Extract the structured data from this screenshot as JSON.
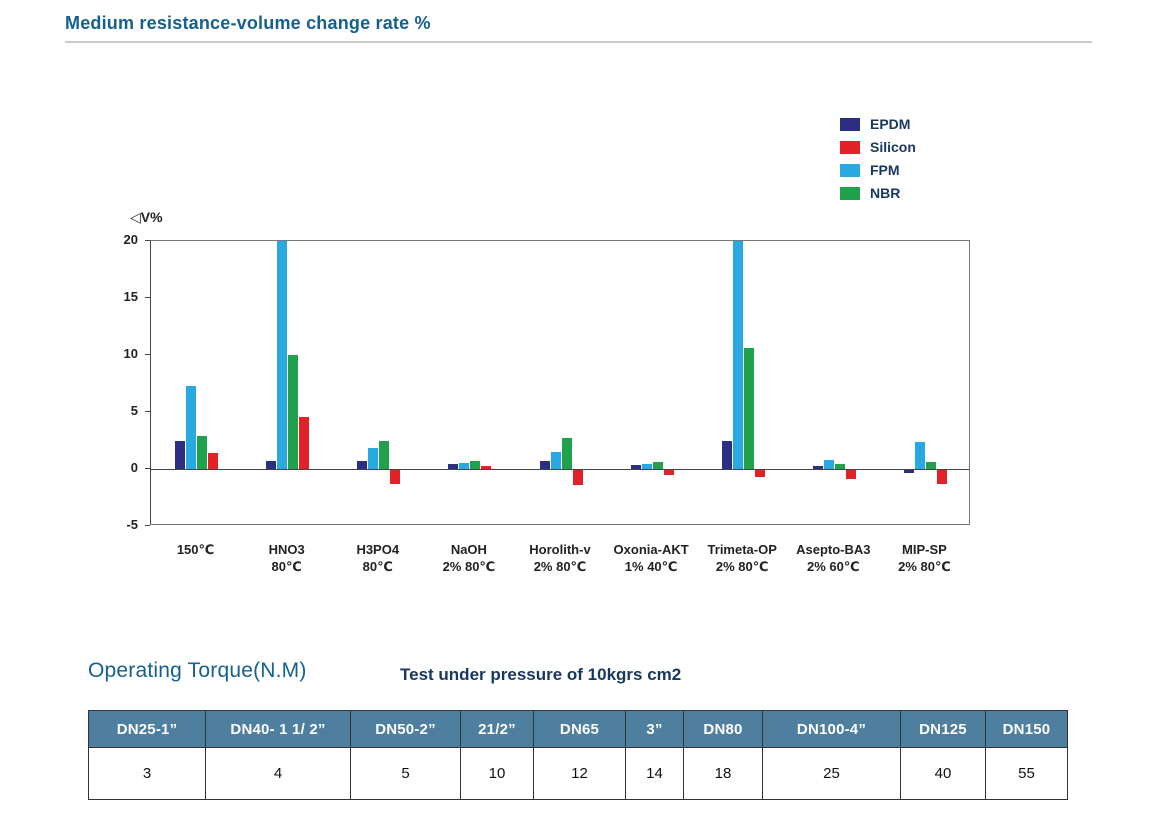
{
  "page": {
    "title": "Medium resistance-volume change rate %"
  },
  "chart_data": {
    "type": "bar",
    "title": "Medium resistance-volume change rate %",
    "ylabel": "◁V%",
    "ylim": [
      -5,
      20
    ],
    "yticks": [
      20,
      15,
      10,
      5,
      0,
      -5
    ],
    "grid": false,
    "legend_position": "top-right",
    "legend_order": [
      "EPDM",
      "Silicon",
      "FPM",
      "NBR"
    ],
    "categories": [
      "150℃",
      "HNO3 80℃",
      "H3PO4 80℃",
      "NaOH 2% 80℃",
      "Horolith-v 2% 80℃",
      "Oxonia-AKT 1% 40℃",
      "Trimeta-OP 2% 80℃",
      "Asepto-BA3 2% 60℃",
      "MIP-SP 2% 80℃"
    ],
    "category_labels": [
      [
        "150℃"
      ],
      [
        "HNO3",
        "80℃"
      ],
      [
        "H3PO4",
        "80℃"
      ],
      [
        "NaOH",
        "2% 80℃"
      ],
      [
        "Horolith-v",
        "2% 80℃"
      ],
      [
        "Oxonia-AKT",
        "1% 40℃"
      ],
      [
        "Trimeta-OP",
        "2% 80℃"
      ],
      [
        "Asepto-BA3",
        "2% 60℃"
      ],
      [
        "MIP-SP",
        "2% 80℃"
      ]
    ],
    "series": [
      {
        "name": "EPDM",
        "color": "#2b2e83",
        "values": [
          2.5,
          0.7,
          0.7,
          0.4,
          0.7,
          0.35,
          2.5,
          0.3,
          -0.3
        ]
      },
      {
        "name": "FPM",
        "color": "#29a9e1",
        "values": [
          7.3,
          20,
          1.8,
          0.5,
          1.5,
          0.4,
          20,
          0.8,
          2.4
        ]
      },
      {
        "name": "NBR",
        "color": "#1fa24b",
        "values": [
          2.9,
          10,
          2.5,
          0.7,
          2.7,
          0.6,
          10.6,
          0.4,
          0.6
        ]
      },
      {
        "name": "Silicon",
        "color": "#e32129",
        "values": [
          1.4,
          4.6,
          -1.2,
          0.3,
          -1.3,
          -0.4,
          -0.6,
          -0.8,
          -1.2
        ]
      }
    ]
  },
  "torque": {
    "heading": "Operating Torque(N.M)",
    "subheading": "Test under pressure of 10kgrs cm2",
    "columns": [
      "DN25-1”",
      "DN40- 1 1/ 2”",
      "DN50-2”",
      "21/2”",
      "DN65",
      "3”",
      "DN80",
      "DN100-4”",
      "DN125",
      "DN150"
    ],
    "values": [
      "3",
      "4",
      "5",
      "10",
      "12",
      "14",
      "18",
      "25",
      "40",
      "55"
    ]
  }
}
